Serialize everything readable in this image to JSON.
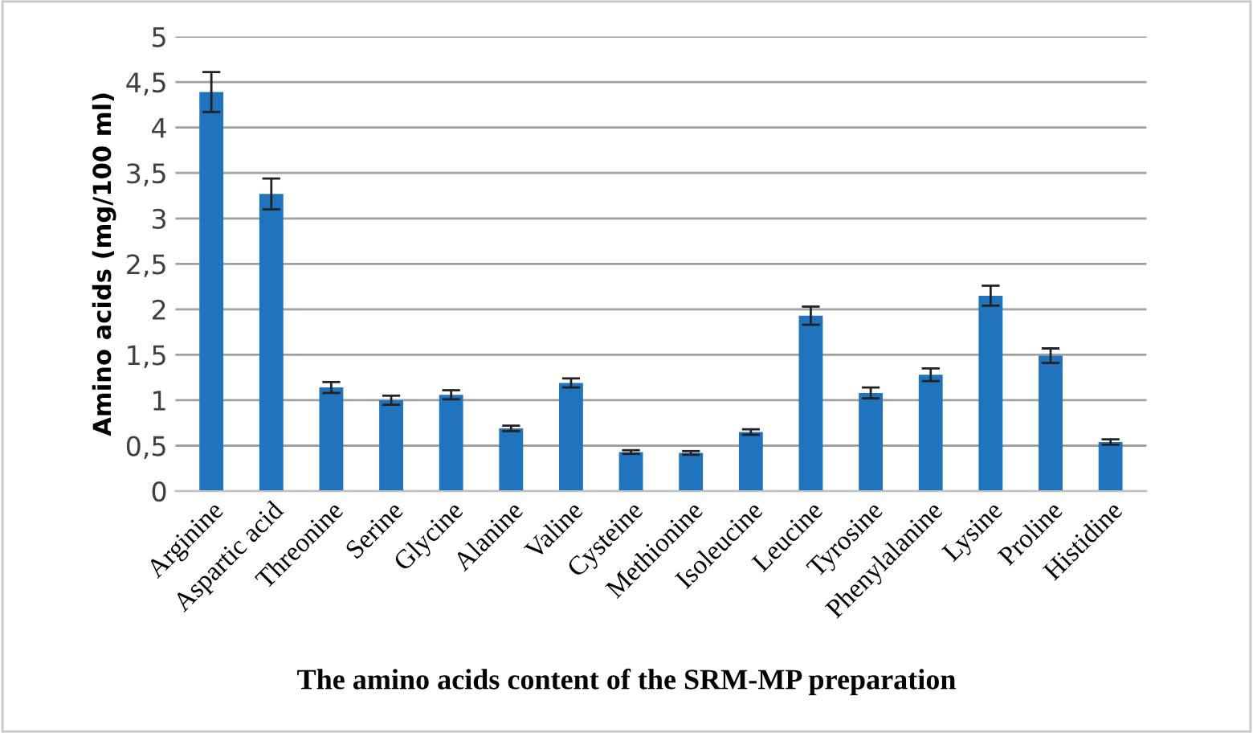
{
  "chart_data": {
    "type": "bar",
    "title": "The amino acids content of the SRM-MP preparation",
    "ylabel": "Amino acids (mg/100 ml)",
    "categories": [
      "Arginine",
      "Aspartic acid",
      "Threonine",
      "Serine",
      "Glycine",
      "Alanine",
      "Valine",
      "Cysteine",
      "Methionine",
      "Isoleucine",
      "Leucine",
      "Tyrosine",
      "Phenylalanine",
      "Lysine",
      "Proline",
      "Histidine"
    ],
    "values": [
      4.39,
      3.27,
      1.14,
      1.0,
      1.06,
      0.69,
      1.19,
      0.43,
      0.42,
      0.65,
      1.93,
      1.08,
      1.28,
      2.15,
      1.49,
      0.54
    ],
    "errors": [
      0.22,
      0.17,
      0.06,
      0.05,
      0.05,
      0.03,
      0.05,
      0.02,
      0.02,
      0.03,
      0.1,
      0.06,
      0.07,
      0.11,
      0.08,
      0.03
    ],
    "color": "#1f74bd",
    "ylim": [
      0,
      5
    ],
    "yticks": [
      0,
      {
        "value": 0.5,
        "label": "0,5"
      },
      1,
      {
        "value": 1.5,
        "label": "1,5"
      },
      2,
      {
        "value": 2.5,
        "label": "2,5"
      },
      3,
      {
        "value": 3.5,
        "label": "3,5"
      },
      4,
      {
        "value": 4.5,
        "label": "4,5"
      },
      5
    ],
    "grid": "y"
  }
}
